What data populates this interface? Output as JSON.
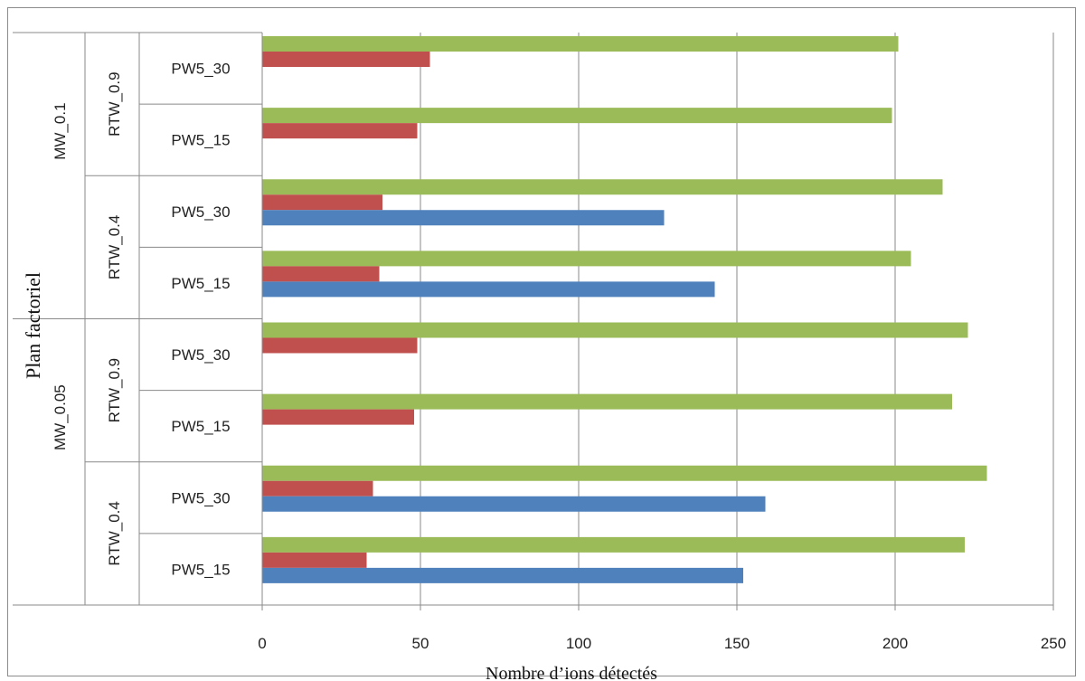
{
  "chart_data": {
    "type": "bar",
    "orientation": "horizontal",
    "xlabel": "Nombre d’ions détectés",
    "ylabel": "Plan factoriel",
    "xlim": [
      0,
      250
    ],
    "x_ticks": [
      "0",
      "50",
      "100",
      "150",
      "200",
      "250"
    ],
    "grid": true,
    "categories": [
      {
        "mw": "MW_0.1",
        "rtw": "RTW_0.9",
        "pw": "PW5_30"
      },
      {
        "mw": "MW_0.1",
        "rtw": "RTW_0.9",
        "pw": "PW5_15"
      },
      {
        "mw": "MW_0.1",
        "rtw": "RTW_0.4",
        "pw": "PW5_30"
      },
      {
        "mw": "MW_0.1",
        "rtw": "RTW_0.4",
        "pw": "PW5_15"
      },
      {
        "mw": "MW_0.05",
        "rtw": "RTW_0.9",
        "pw": "PW5_30"
      },
      {
        "mw": "MW_0.05",
        "rtw": "RTW_0.9",
        "pw": "PW5_15"
      },
      {
        "mw": "MW_0.05",
        "rtw": "RTW_0.4",
        "pw": "PW5_30"
      },
      {
        "mw": "MW_0.05",
        "rtw": "RTW_0.4",
        "pw": "PW5_15"
      }
    ],
    "series": [
      {
        "color": "#9bbb59",
        "values": [
          201,
          199,
          215,
          205,
          223,
          218,
          229,
          222
        ]
      },
      {
        "color": "#c0504d",
        "values": [
          53,
          49,
          38,
          37,
          49,
          48,
          35,
          33
        ]
      },
      {
        "color": "#4f81bd",
        "values": [
          0,
          0,
          127,
          143,
          0,
          0,
          159,
          152
        ]
      }
    ],
    "groups_rtw": [
      {
        "label": "RTW_0.9"
      },
      {
        "label": "RTW_0.4"
      },
      {
        "label": "RTW_0.9"
      },
      {
        "label": "RTW_0.4"
      }
    ],
    "groups_mw": [
      {
        "label": "MW_0.1"
      },
      {
        "label": "MW_0.05"
      }
    ]
  }
}
